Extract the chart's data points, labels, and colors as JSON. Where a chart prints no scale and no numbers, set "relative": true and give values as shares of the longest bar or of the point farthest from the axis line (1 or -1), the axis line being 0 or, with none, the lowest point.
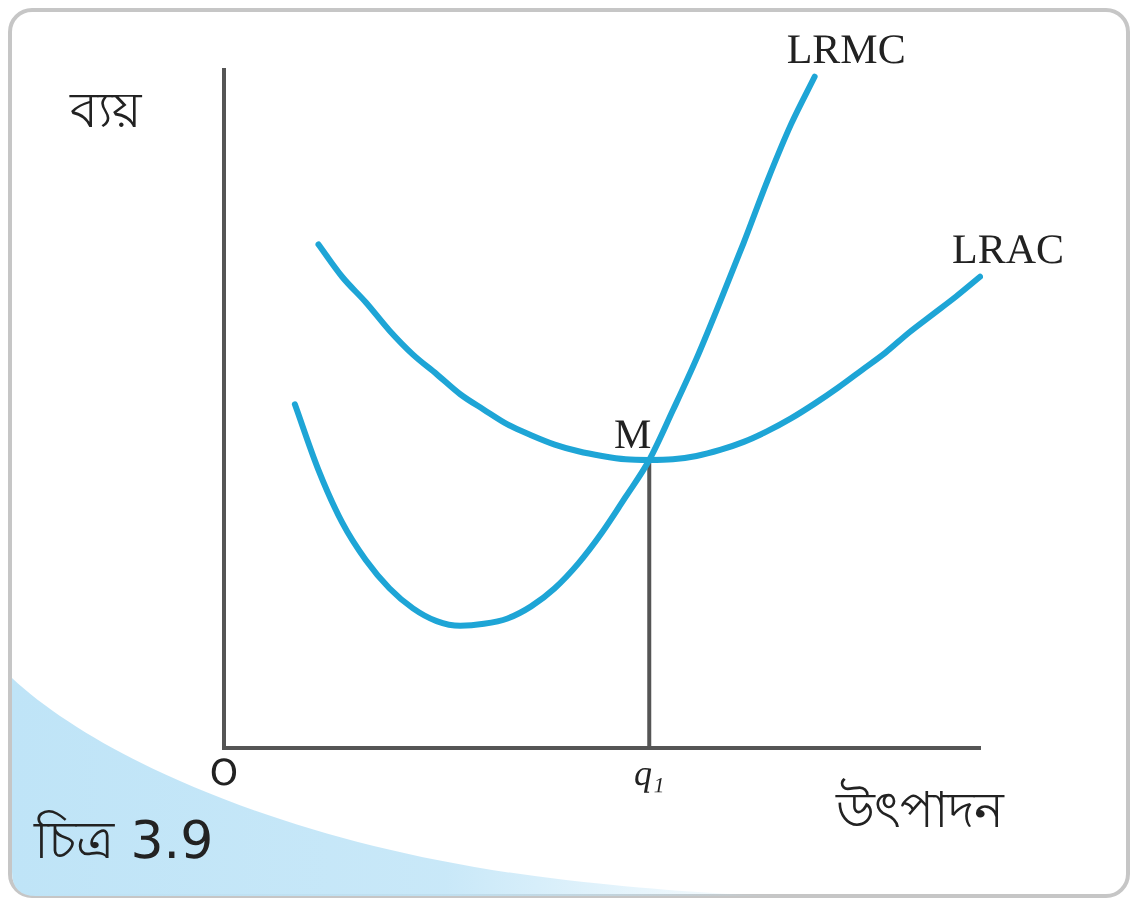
{
  "chart_data": {
    "type": "line",
    "ylabel": "ব্যয়",
    "xlabel": "উৎপাদন",
    "relative": true,
    "tick_labels": "x",
    "annotations": [
      "চিত্র 3.9",
      {
        "text": "M",
        "x": "q₁",
        "y": 0.429
      }
    ],
    "categories": [
      "O",
      null,
      null,
      null,
      null,
      null,
      null,
      null,
      null,
      null,
      null,
      null,
      null,
      null,
      null,
      null,
      null,
      null,
      "q₁",
      null,
      null,
      null,
      null,
      null,
      null,
      null,
      null,
      null,
      null,
      null,
      null,
      null,
      null
    ],
    "series": [
      {
        "name": "LRMC",
        "color": "#1ea5d6",
        "values": [
          null,
          null,
          null,
          0.512,
          0.414,
          0.336,
          0.28,
          0.238,
          0.208,
          0.189,
          0.182,
          0.185,
          0.193,
          0.211,
          0.238,
          0.275,
          0.321,
          0.374,
          0.429,
          0.503,
          0.58,
          0.665,
          0.753,
          0.845,
          0.929,
          1,
          null,
          null,
          null,
          null,
          null,
          null,
          null
        ]
      },
      {
        "name": "LRAC",
        "color": "#1ea5d6",
        "values": [
          null,
          null,
          null,
          null,
          0.75,
          0.702,
          0.664,
          0.622,
          0.586,
          0.557,
          0.527,
          0.504,
          0.482,
          0.466,
          0.452,
          0.442,
          0.435,
          0.43,
          0.429,
          0.43,
          0.435,
          0.444,
          0.456,
          0.472,
          0.491,
          0.513,
          0.537,
          0.563,
          0.589,
          0.619,
          0.646,
          0.673,
          0.702
        ]
      },
      {
        "color": "#555555",
        "x": [
          "q₁",
          "q₁"
        ],
        "values": [
          0,
          0.429
        ]
      }
    ]
  }
}
